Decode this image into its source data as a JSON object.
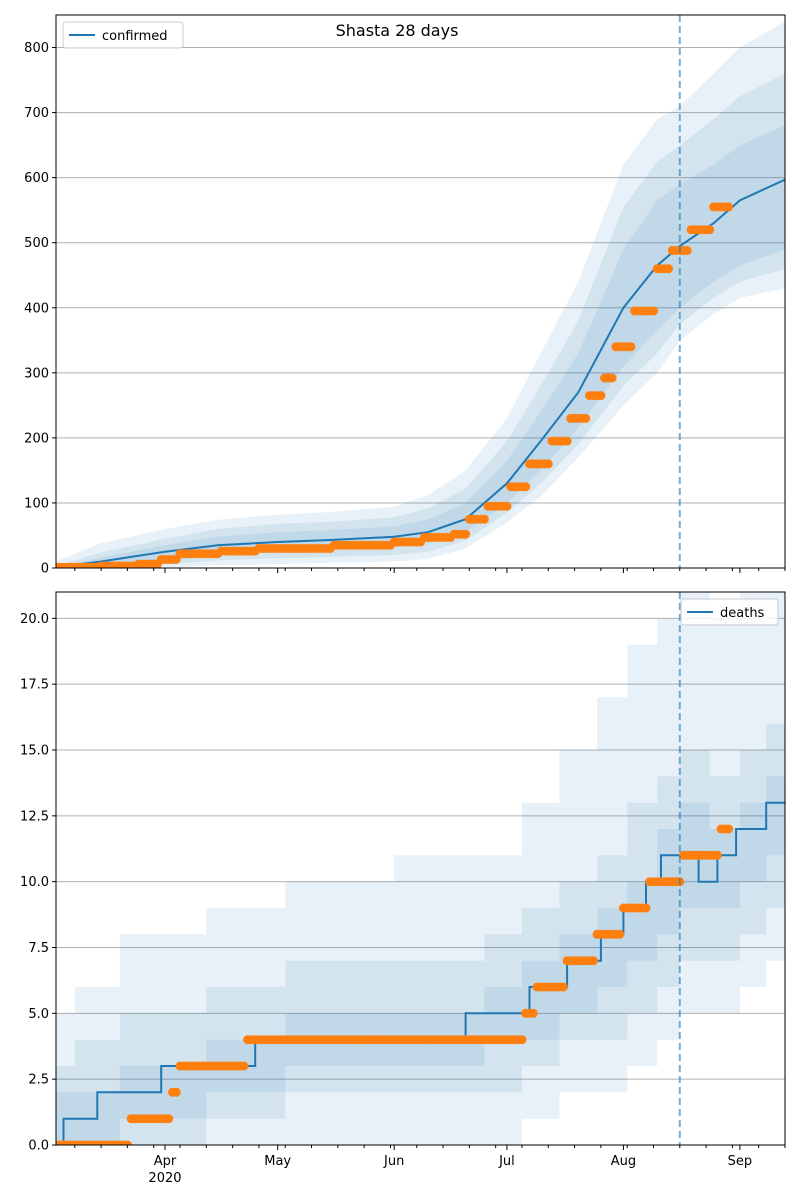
{
  "title": "Shasta 28 days",
  "colors": {
    "model": "#1f77b4",
    "observed": "#ff7f0e",
    "band": "#1f77b4",
    "grid": "#b0b0b0"
  },
  "chart_data": [
    {
      "type": "line",
      "panel": "top",
      "title": "Shasta 28 days",
      "legend": "confirmed",
      "legend_position": "top-left",
      "grid": "horizontal",
      "x_range": [
        "2020-03-03",
        "2020-09-13"
      ],
      "ylim": [
        0,
        850
      ],
      "y_ticks": [
        0,
        100,
        200,
        300,
        400,
        500,
        600,
        700,
        800
      ],
      "y_tick_labels": [
        "0",
        "100",
        "200",
        "300",
        "400",
        "500",
        "600",
        "700",
        "800"
      ],
      "x_tick_labels": [
        "Apr",
        "May",
        "Jun",
        "Jul",
        "Aug",
        "Sep"
      ],
      "x_tick_dates": [
        "2020-04-01",
        "2020-05-01",
        "2020-06-01",
        "2020-07-01",
        "2020-08-01",
        "2020-09-01"
      ],
      "x_year_label": "2020",
      "forecast_start": "2020-08-16",
      "model": {
        "dates": [
          "2020-03-03",
          "2020-03-15",
          "2020-04-01",
          "2020-04-15",
          "2020-05-01",
          "2020-05-15",
          "2020-06-01",
          "2020-06-10",
          "2020-06-20",
          "2020-07-01",
          "2020-07-10",
          "2020-07-20",
          "2020-08-01",
          "2020-08-10",
          "2020-08-16",
          "2020-08-25",
          "2020-09-01",
          "2020-09-13"
        ],
        "values": [
          1,
          10,
          25,
          35,
          40,
          43,
          48,
          55,
          75,
          130,
          195,
          270,
          400,
          465,
          495,
          530,
          565,
          597
        ]
      },
      "bands": [
        {
          "lower": [
            0,
            2,
            10,
            20,
            25,
            28,
            32,
            38,
            55,
            100,
            150,
            215,
            310,
            365,
            400,
            440,
            465,
            490
          ],
          "upper": [
            1,
            16,
            35,
            48,
            55,
            58,
            64,
            75,
            100,
            165,
            240,
            330,
            490,
            565,
            590,
            620,
            650,
            680
          ]
        },
        {
          "lower": [
            0,
            1,
            5,
            12,
            15,
            17,
            20,
            25,
            42,
            85,
            130,
            190,
            280,
            330,
            375,
            415,
            440,
            460
          ],
          "upper": [
            3,
            24,
            45,
            60,
            68,
            71,
            78,
            92,
            122,
            195,
            280,
            380,
            555,
            625,
            650,
            690,
            725,
            760
          ]
        },
        {
          "lower": [
            0,
            0,
            1,
            4,
            6,
            8,
            10,
            14,
            30,
            70,
            110,
            170,
            250,
            300,
            350,
            390,
            415,
            430
          ],
          "upper": [
            10,
            38,
            60,
            74,
            82,
            86,
            94,
            112,
            150,
            230,
            330,
            440,
            620,
            690,
            710,
            760,
            800,
            840
          ]
        }
      ],
      "observed": [
        {
          "from": "2020-03-03",
          "to": "2020-03-14",
          "value": 1
        },
        {
          "from": "2020-03-15",
          "to": "2020-03-24",
          "value": 3
        },
        {
          "from": "2020-03-25",
          "to": "2020-03-30",
          "value": 6
        },
        {
          "from": "2020-03-31",
          "to": "2020-04-04",
          "value": 13
        },
        {
          "from": "2020-04-05",
          "to": "2020-04-15",
          "value": 22
        },
        {
          "from": "2020-04-16",
          "to": "2020-04-25",
          "value": 26
        },
        {
          "from": "2020-04-26",
          "to": "2020-05-15",
          "value": 30
        },
        {
          "from": "2020-05-16",
          "to": "2020-05-31",
          "value": 35
        },
        {
          "from": "2020-06-01",
          "to": "2020-06-08",
          "value": 40
        },
        {
          "from": "2020-06-09",
          "to": "2020-06-16",
          "value": 47
        },
        {
          "from": "2020-06-17",
          "to": "2020-06-20",
          "value": 52
        },
        {
          "from": "2020-06-21",
          "to": "2020-06-25",
          "value": 75
        },
        {
          "from": "2020-06-26",
          "to": "2020-07-01",
          "value": 95
        },
        {
          "from": "2020-07-02",
          "to": "2020-07-06",
          "value": 125
        },
        {
          "from": "2020-07-07",
          "to": "2020-07-12",
          "value": 160
        },
        {
          "from": "2020-07-13",
          "to": "2020-07-17",
          "value": 195
        },
        {
          "from": "2020-07-18",
          "to": "2020-07-22",
          "value": 230
        },
        {
          "from": "2020-07-23",
          "to": "2020-07-26",
          "value": 265
        },
        {
          "from": "2020-07-27",
          "to": "2020-07-29",
          "value": 292
        },
        {
          "from": "2020-07-30",
          "to": "2020-08-03",
          "value": 340
        },
        {
          "from": "2020-08-04",
          "to": "2020-08-09",
          "value": 395
        },
        {
          "from": "2020-08-10",
          "to": "2020-08-13",
          "value": 460
        },
        {
          "from": "2020-08-14",
          "to": "2020-08-18",
          "value": 488
        },
        {
          "from": "2020-08-19",
          "to": "2020-08-24",
          "value": 520
        },
        {
          "from": "2020-08-25",
          "to": "2020-08-29",
          "value": 555
        }
      ]
    },
    {
      "type": "line",
      "panel": "bottom",
      "legend": "deaths",
      "legend_position": "top-right",
      "grid": "horizontal",
      "x_range": [
        "2020-03-03",
        "2020-09-13"
      ],
      "ylim": [
        0,
        21
      ],
      "y_ticks": [
        0,
        2.5,
        5,
        7.5,
        10,
        12.5,
        15,
        17.5,
        20
      ],
      "y_tick_labels": [
        "0.0",
        "2.5",
        "5.0",
        "7.5",
        "10.0",
        "12.5",
        "15.0",
        "17.5",
        "20.0"
      ],
      "x_tick_labels": [
        "Apr",
        "May",
        "Jun",
        "Jul",
        "Aug",
        "Sep"
      ],
      "x_tick_dates": [
        "2020-04-01",
        "2020-05-01",
        "2020-06-01",
        "2020-07-01",
        "2020-08-01",
        "2020-09-01"
      ],
      "x_year_label": "2020",
      "forecast_start": "2020-08-16",
      "model_steps": [
        {
          "date": "2020-03-03",
          "value": 0
        },
        {
          "date": "2020-03-05",
          "value": 1
        },
        {
          "date": "2020-03-14",
          "value": 2
        },
        {
          "date": "2020-03-31",
          "value": 3
        },
        {
          "date": "2020-04-25",
          "value": 4
        },
        {
          "date": "2020-06-20",
          "value": 5
        },
        {
          "date": "2020-07-07",
          "value": 6
        },
        {
          "date": "2020-07-17",
          "value": 7
        },
        {
          "date": "2020-07-26",
          "value": 8
        },
        {
          "date": "2020-08-01",
          "value": 9
        },
        {
          "date": "2020-08-07",
          "value": 10
        },
        {
          "date": "2020-08-11",
          "value": 11
        },
        {
          "date": "2020-08-21",
          "value": 10
        },
        {
          "date": "2020-08-26",
          "value": 11
        },
        {
          "date": "2020-08-31",
          "value": 12
        },
        {
          "date": "2020-09-08",
          "value": 13
        },
        {
          "date": "2020-09-13",
          "value": 13
        }
      ],
      "band_steps": [
        {
          "dates": [
            "2020-03-03",
            "2020-03-08",
            "2020-03-20",
            "2020-04-12",
            "2020-05-03",
            "2020-06-01",
            "2020-06-25",
            "2020-07-05",
            "2020-07-15",
            "2020-07-25",
            "2020-08-02",
            "2020-08-10",
            "2020-08-16",
            "2020-08-24",
            "2020-09-01",
            "2020-09-08",
            "2020-09-13"
          ],
          "lower": [
            0,
            0,
            1,
            2,
            3,
            3,
            4,
            4,
            5,
            6,
            7,
            8,
            9,
            9,
            10,
            11,
            11
          ],
          "upper": [
            2,
            2,
            3,
            4,
            5,
            5,
            6,
            7,
            8,
            9,
            10,
            12,
            13,
            12,
            13,
            14,
            15
          ]
        },
        {
          "dates": [
            "2020-03-03",
            "2020-03-08",
            "2020-03-20",
            "2020-04-12",
            "2020-05-03",
            "2020-06-01",
            "2020-06-25",
            "2020-07-05",
            "2020-07-15",
            "2020-07-25",
            "2020-08-02",
            "2020-08-10",
            "2020-08-16",
            "2020-08-24",
            "2020-09-01",
            "2020-09-08",
            "2020-09-13"
          ],
          "lower": [
            0,
            0,
            0,
            1,
            2,
            2,
            2,
            3,
            4,
            4,
            5,
            6,
            7,
            7,
            8,
            9,
            9
          ],
          "upper": [
            3,
            4,
            5,
            6,
            7,
            7,
            8,
            9,
            10,
            11,
            13,
            14,
            15,
            14,
            15,
            16,
            17
          ]
        },
        {
          "dates": [
            "2020-03-03",
            "2020-03-08",
            "2020-03-20",
            "2020-04-12",
            "2020-05-03",
            "2020-06-01",
            "2020-06-25",
            "2020-07-05",
            "2020-07-15",
            "2020-07-25",
            "2020-08-02",
            "2020-08-10",
            "2020-08-16",
            "2020-08-24",
            "2020-09-01",
            "2020-09-08",
            "2020-09-13"
          ],
          "lower": [
            0,
            0,
            0,
            0,
            0,
            0,
            0,
            1,
            2,
            2,
            3,
            4,
            5,
            5,
            6,
            7,
            7
          ],
          "upper": [
            5,
            6,
            8,
            9,
            10,
            11,
            11,
            13,
            15,
            17,
            19,
            20,
            21,
            20,
            21,
            21,
            21
          ]
        }
      ],
      "observed": [
        {
          "from": "2020-03-03",
          "to": "2020-03-22",
          "value": 0
        },
        {
          "from": "2020-03-23",
          "to": "2020-04-02",
          "value": 1
        },
        {
          "from": "2020-04-03",
          "to": "2020-04-04",
          "value": 2
        },
        {
          "from": "2020-04-05",
          "to": "2020-04-22",
          "value": 3
        },
        {
          "from": "2020-04-23",
          "to": "2020-07-05",
          "value": 4
        },
        {
          "from": "2020-07-06",
          "to": "2020-07-08",
          "value": 5
        },
        {
          "from": "2020-07-09",
          "to": "2020-07-16",
          "value": 6
        },
        {
          "from": "2020-07-17",
          "to": "2020-07-24",
          "value": 7
        },
        {
          "from": "2020-07-25",
          "to": "2020-07-31",
          "value": 8
        },
        {
          "from": "2020-08-01",
          "to": "2020-08-07",
          "value": 9
        },
        {
          "from": "2020-08-08",
          "to": "2020-08-16",
          "value": 10
        },
        {
          "from": "2020-08-17",
          "to": "2020-08-26",
          "value": 11
        },
        {
          "from": "2020-08-27",
          "to": "2020-08-29",
          "value": 12
        }
      ]
    }
  ]
}
